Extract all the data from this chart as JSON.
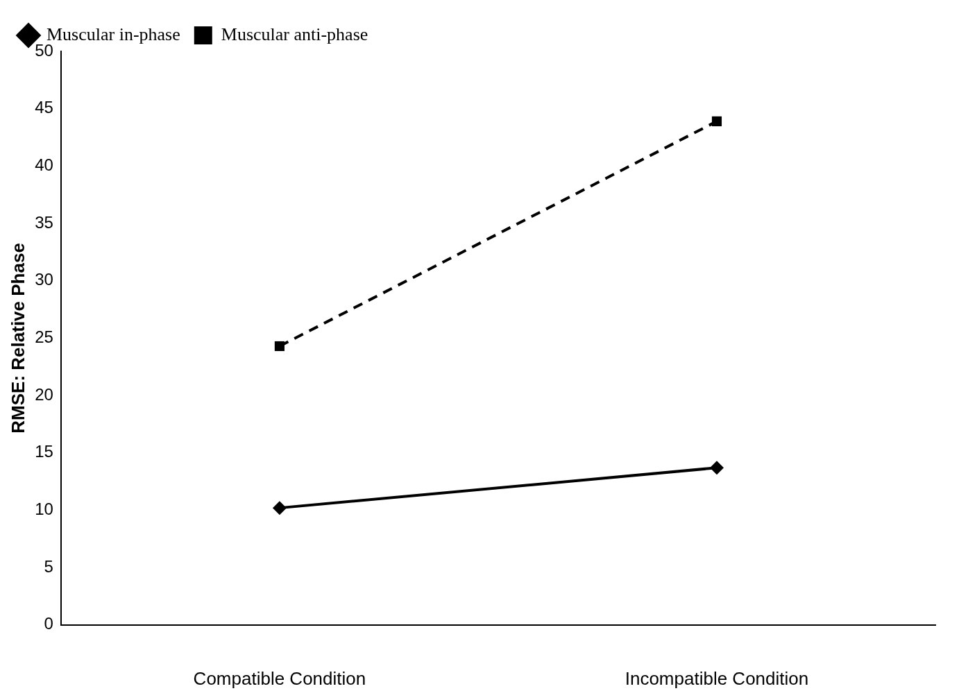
{
  "chart_data": {
    "type": "line",
    "ylabel": "RMSE: Relative Phase",
    "categories": [
      "Compatible Condition",
      "Incompatible Condition"
    ],
    "series": [
      {
        "name": "Muscular in-phase",
        "color": "#000000",
        "values": [
          10.2,
          13.7
        ],
        "marker": "diamond",
        "line_style": "solid"
      },
      {
        "name": "Muscular anti-phase",
        "color": "#000000",
        "values": [
          24.3,
          43.9
        ],
        "marker": "square",
        "line_style": "dashed"
      }
    ],
    "ylim": [
      0,
      50
    ],
    "yticks": [
      0,
      5,
      10,
      15,
      20,
      25,
      30,
      35,
      40,
      45,
      50
    ],
    "grid": false,
    "legend": "top left"
  }
}
